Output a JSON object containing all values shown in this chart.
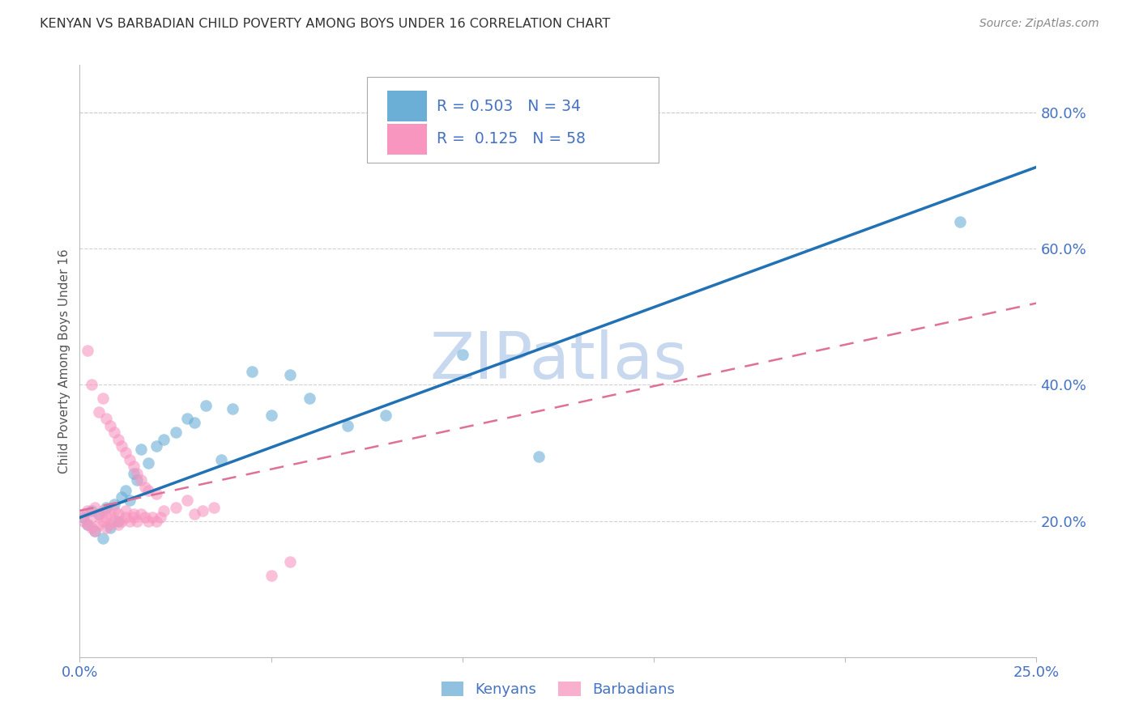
{
  "title": "KENYAN VS BARBADIAN CHILD POVERTY AMONG BOYS UNDER 16 CORRELATION CHART",
  "source": "Source: ZipAtlas.com",
  "ylabel": "Child Poverty Among Boys Under 16",
  "xlim": [
    0.0,
    0.25
  ],
  "ylim": [
    0.0,
    0.87
  ],
  "xticks": [
    0.0,
    0.05,
    0.1,
    0.15,
    0.2,
    0.25
  ],
  "xticklabels": [
    "0.0%",
    "",
    "",
    "",
    "",
    "25.0%"
  ],
  "yticks_right": [
    0.2,
    0.4,
    0.6,
    0.8
  ],
  "ytick_right_labels": [
    "20.0%",
    "40.0%",
    "60.0%",
    "80.0%"
  ],
  "kenyan_color": "#6baed6",
  "barbadian_color": "#f896c0",
  "kenyan_line_color": "#2171b5",
  "barbadian_line_color": "#e07098",
  "kenyan_R": 0.503,
  "kenyan_N": 34,
  "barbadian_R": 0.125,
  "barbadian_N": 58,
  "watermark": "ZIPatlas",
  "watermark_color": "#c8d8ee",
  "background_color": "#ffffff",
  "grid_color": "#cccccc",
  "title_color": "#333333",
  "axis_label_color": "#4472c4",
  "kenyan_x": [
    0.001,
    0.002,
    0.003,
    0.004,
    0.005,
    0.006,
    0.007,
    0.008,
    0.009,
    0.01,
    0.011,
    0.012,
    0.013,
    0.014,
    0.015,
    0.016,
    0.018,
    0.02,
    0.022,
    0.025,
    0.028,
    0.03,
    0.033,
    0.037,
    0.04,
    0.045,
    0.05,
    0.055,
    0.06,
    0.07,
    0.08,
    0.1,
    0.12,
    0.23
  ],
  "kenyan_y": [
    0.205,
    0.195,
    0.215,
    0.185,
    0.21,
    0.175,
    0.22,
    0.19,
    0.225,
    0.2,
    0.235,
    0.245,
    0.23,
    0.27,
    0.26,
    0.305,
    0.285,
    0.31,
    0.32,
    0.33,
    0.35,
    0.345,
    0.37,
    0.29,
    0.365,
    0.42,
    0.355,
    0.415,
    0.38,
    0.34,
    0.355,
    0.445,
    0.295,
    0.64
  ],
  "barbadian_x": [
    0.001,
    0.001,
    0.002,
    0.002,
    0.002,
    0.003,
    0.003,
    0.003,
    0.004,
    0.004,
    0.005,
    0.005,
    0.005,
    0.006,
    0.006,
    0.006,
    0.007,
    0.007,
    0.007,
    0.008,
    0.008,
    0.008,
    0.009,
    0.009,
    0.009,
    0.01,
    0.01,
    0.01,
    0.011,
    0.011,
    0.012,
    0.012,
    0.012,
    0.013,
    0.013,
    0.014,
    0.014,
    0.014,
    0.015,
    0.015,
    0.016,
    0.016,
    0.017,
    0.017,
    0.018,
    0.018,
    0.019,
    0.02,
    0.02,
    0.021,
    0.022,
    0.025,
    0.028,
    0.03,
    0.032,
    0.035,
    0.05,
    0.055
  ],
  "barbadian_y": [
    0.2,
    0.21,
    0.195,
    0.215,
    0.45,
    0.19,
    0.205,
    0.4,
    0.185,
    0.22,
    0.195,
    0.21,
    0.36,
    0.2,
    0.215,
    0.38,
    0.19,
    0.205,
    0.35,
    0.195,
    0.21,
    0.34,
    0.2,
    0.215,
    0.33,
    0.195,
    0.21,
    0.32,
    0.2,
    0.31,
    0.205,
    0.215,
    0.3,
    0.2,
    0.29,
    0.21,
    0.205,
    0.28,
    0.2,
    0.27,
    0.21,
    0.26,
    0.205,
    0.25,
    0.2,
    0.245,
    0.205,
    0.2,
    0.24,
    0.205,
    0.215,
    0.22,
    0.23,
    0.21,
    0.215,
    0.22,
    0.12,
    0.14
  ]
}
